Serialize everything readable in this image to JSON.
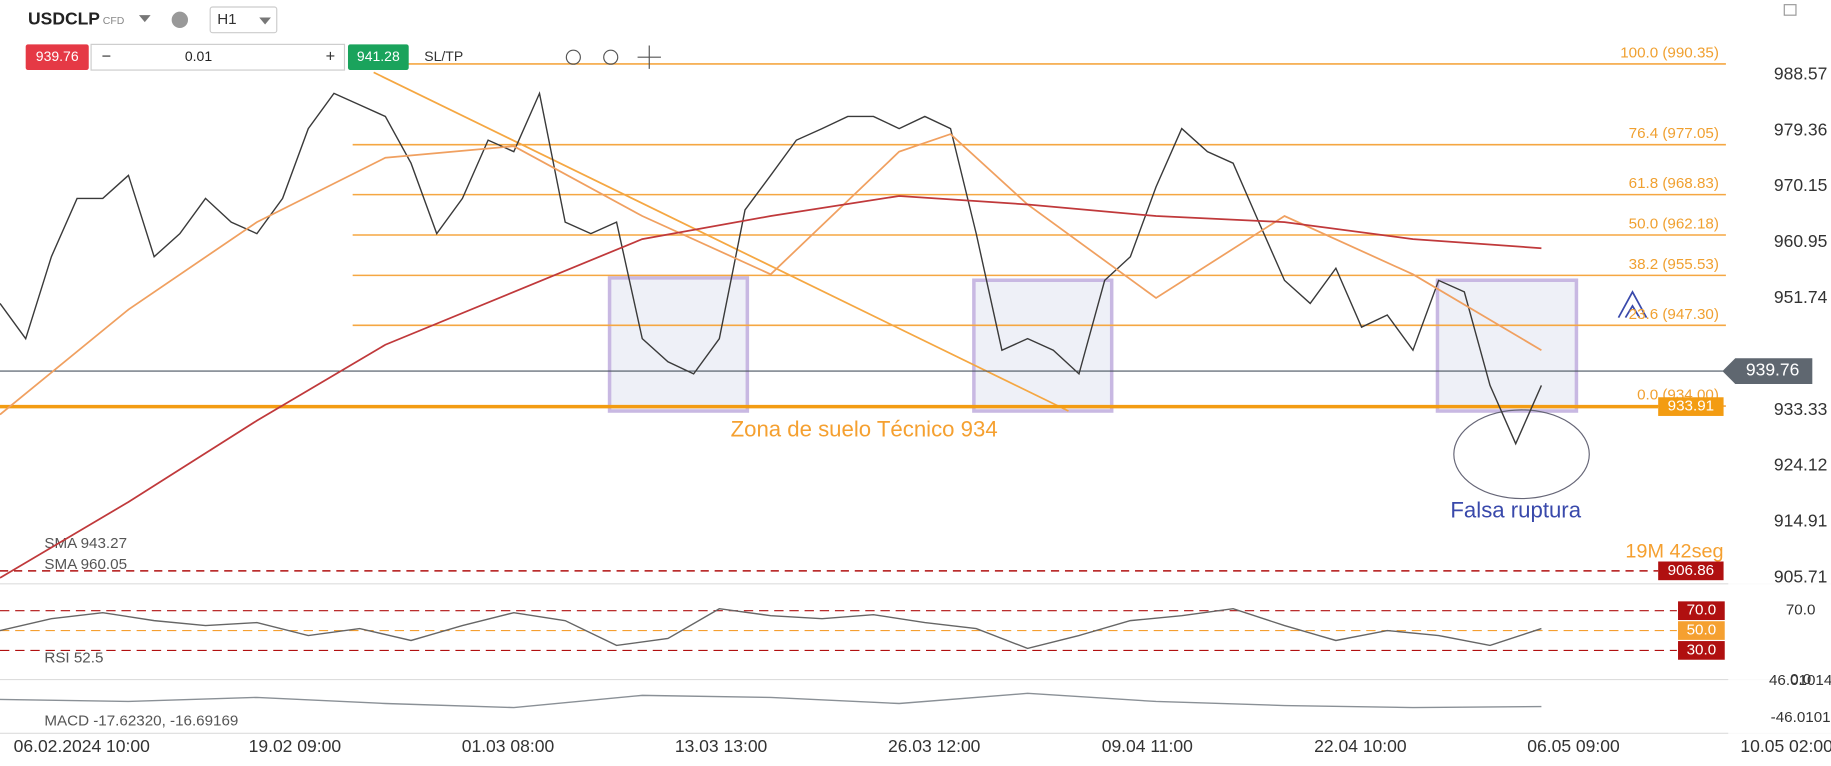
{
  "toolbar": {
    "symbol": "USDCLP",
    "instrument_type": "CFD",
    "timeframe": "H1",
    "sell_price": "939.76",
    "volume": "0.01",
    "buy_price": "941.28",
    "sl_tp": "SL/TP"
  },
  "x_labels": [
    "06.02.2024 10:00",
    "19.02 09:00",
    "01.03 08:00",
    "13.03 13:00",
    "26.03 12:00",
    "09.04 11:00",
    "22.04 10:00",
    "06.05 09:00",
    "10.05 02:00"
  ],
  "chart_data": [
    {
      "type": "line",
      "series": [
        {
          "color": "#3a3a3a",
          "x": [
            0,
            1,
            2,
            3,
            4,
            5,
            6,
            7,
            8,
            9,
            10,
            11,
            12,
            13,
            14,
            15,
            16,
            17,
            18,
            19,
            20,
            21,
            22,
            23,
            24,
            25,
            26,
            27,
            28,
            29,
            30,
            31,
            32,
            33,
            34,
            35,
            36,
            37,
            38,
            39,
            40,
            41,
            42,
            43,
            44,
            45,
            46,
            47,
            48,
            49,
            50,
            51,
            52,
            53,
            54,
            55,
            56,
            57,
            58,
            59,
            60
          ],
          "values": [
            950.9,
            945.1,
            958.6,
            968.2,
            968.2,
            972.0,
            958.6,
            962.4,
            968.2,
            964.3,
            962.4,
            968.2,
            979.7,
            985.5,
            983.6,
            981.7,
            974.0,
            962.4,
            968.2,
            977.8,
            975.9,
            985.5,
            964.3,
            962.4,
            964.3,
            945.1,
            941.3,
            939.3,
            945.1,
            966.3,
            972.0,
            977.8,
            979.7,
            981.7,
            981.7,
            979.7,
            981.7,
            979.7,
            962.4,
            943.2,
            945.1,
            943.2,
            939.3,
            954.7,
            958.6,
            970.1,
            979.7,
            975.9,
            974.0,
            964.3,
            954.7,
            950.9,
            956.7,
            947.0,
            949.0,
            943.2,
            954.7,
            952.8,
            937.4,
            927.8,
            937.4
          ]
        },
        {
          "name": "SMA 943.27",
          "color": "#f0a060",
          "x": [
            0,
            5,
            10,
            15,
            20,
            25,
            30,
            35,
            37,
            40,
            45,
            50,
            55,
            60
          ],
          "values": [
            932.6,
            949.9,
            964.3,
            974.9,
            976.8,
            965.3,
            955.7,
            975.9,
            978.8,
            967.2,
            951.8,
            965.3,
            955.7,
            943.2
          ]
        },
        {
          "name": "SMA 960.05",
          "color": "#c0393b",
          "x": [
            0,
            5,
            10,
            15,
            20,
            25,
            30,
            35,
            40,
            45,
            50,
            55,
            60
          ],
          "values": [
            905.7,
            918.2,
            931.6,
            944.1,
            952.8,
            961.5,
            965.3,
            968.6,
            967.2,
            965.3,
            964.3,
            961.5,
            960.0
          ]
        }
      ],
      "ylim": [
        904.72,
        1000.88
      ],
      "yticks": [
        905.71,
        914.91,
        924.12,
        933.33,
        951.74,
        960.95,
        970.15,
        979.36,
        988.57
      ],
      "levels": [
        {
          "label": "100.0 (990.35)",
          "value": 990.35
        },
        {
          "label": "76.4 (977.05)",
          "value": 977.05
        },
        {
          "label": "61.8 (968.83)",
          "value": 968.83
        },
        {
          "label": "50.0 (962.18)",
          "value": 962.18
        },
        {
          "label": "38.2 (955.53)",
          "value": 955.53
        },
        {
          "label": "23.6 (947.30)",
          "value": 947.3
        },
        {
          "label": "0.0 (934.00)",
          "value": 934.0
        }
      ],
      "price_tags": [
        {
          "value": 939.76,
          "color": "#5f6770"
        },
        {
          "value": 933.91,
          "color": "#f39c12"
        },
        {
          "value": 906.86,
          "color": "#b01010"
        }
      ],
      "annotations": [
        "Zona de suelo Técnico 934",
        "Falsa ruptura"
      ],
      "countdown": "19M 42seg"
    },
    {
      "type": "line",
      "name": "RSI 52.5",
      "series": [
        {
          "color": "#666",
          "x": [
            0,
            2,
            4,
            6,
            8,
            10,
            12,
            14,
            16,
            18,
            20,
            22,
            24,
            26,
            28,
            30,
            32,
            34,
            36,
            38,
            40,
            42,
            44,
            46,
            48,
            50,
            52,
            54,
            56,
            58,
            60
          ],
          "values": [
            50,
            62,
            68,
            60,
            55,
            58,
            45,
            52,
            40,
            55,
            68,
            60,
            35,
            42,
            72,
            65,
            62,
            66,
            58,
            52,
            32,
            45,
            60,
            65,
            72,
            55,
            40,
            50,
            45,
            35,
            52
          ]
        }
      ],
      "ylim": [
        0,
        100
      ],
      "yticks": [
        {
          "value": 70,
          "label": "70.0"
        },
        {
          "value": 0,
          "label": "0.0"
        }
      ],
      "levels": [
        {
          "value": 70,
          "label": "70.0"
        },
        {
          "value": 50,
          "label": "50.0"
        },
        {
          "value": 30,
          "label": "30.0"
        }
      ]
    },
    {
      "type": "line",
      "name": "MACD -17.62320, -16.69169",
      "series": [
        {
          "color": "#8a9096",
          "x": [
            0,
            5,
            10,
            15,
            20,
            25,
            30,
            35,
            40,
            45,
            50,
            55,
            60
          ],
          "values": [
            0,
            -5,
            5,
            -10,
            -20,
            10,
            5,
            -10,
            15,
            -5,
            -15,
            -20,
            -17.6
          ]
        }
      ],
      "ylim": [
        -46.0101,
        46.01014
      ],
      "yticks": [
        {
          "value": 46.01014,
          "label": "46.01014"
        },
        {
          "value": -46.0101,
          "label": "-46.0101"
        }
      ]
    }
  ]
}
